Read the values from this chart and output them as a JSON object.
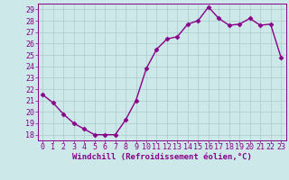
{
  "x": [
    0,
    1,
    2,
    3,
    4,
    5,
    6,
    7,
    8,
    9,
    10,
    11,
    12,
    13,
    14,
    15,
    16,
    17,
    18,
    19,
    20,
    21,
    22,
    23
  ],
  "y": [
    21.5,
    20.8,
    19.8,
    19.0,
    18.5,
    18.0,
    18.0,
    18.0,
    19.3,
    21.0,
    23.8,
    25.5,
    26.4,
    26.6,
    27.7,
    28.0,
    29.2,
    28.2,
    27.6,
    27.7,
    28.2,
    27.6,
    27.7,
    24.8
  ],
  "line_color": "#880088",
  "marker": "D",
  "marker_size": 2.5,
  "bg_color": "#cce8e8",
  "grid_color": "#aacccc",
  "xlabel": "Windchill (Refroidissement éolien,°C)",
  "xlim": [
    -0.5,
    23.5
  ],
  "ylim": [
    17.5,
    29.5
  ],
  "yticks": [
    18,
    19,
    20,
    21,
    22,
    23,
    24,
    25,
    26,
    27,
    28,
    29
  ],
  "xtick_labels": [
    "0",
    "1",
    "2",
    "3",
    "4",
    "5",
    "6",
    "7",
    "8",
    "9",
    "10",
    "11",
    "12",
    "13",
    "14",
    "15",
    "16",
    "17",
    "18",
    "19",
    "20",
    "21",
    "22",
    "23"
  ],
  "xlabel_fontsize": 6.5,
  "tick_fontsize": 6.0,
  "line_width": 1.0
}
